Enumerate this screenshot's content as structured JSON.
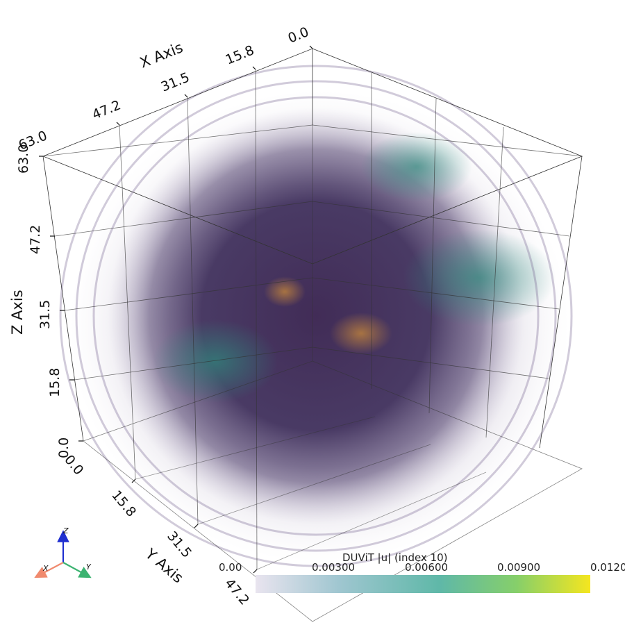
{
  "axes": {
    "x": {
      "title": "X Axis",
      "ticks": [
        "0.0",
        "15.8",
        "31.5",
        "47.2",
        "63.0"
      ]
    },
    "y": {
      "title": "Y Axis",
      "ticks": [
        "0.0",
        "15.8",
        "31.5",
        "47.2"
      ]
    },
    "z": {
      "title": "Z Axis",
      "ticks": [
        "0.0",
        "15.8",
        "31.5",
        "47.2",
        "63.0"
      ]
    }
  },
  "colorbar": {
    "title": "DUViT |u| (index 10)",
    "ticks": [
      "0.00",
      "0.00300",
      "0.00600",
      "0.00900",
      "0.0120"
    ],
    "colormap": [
      "#e9e4ef",
      "#9fc6d0",
      "#5fb8a8",
      "#86cf6a",
      "#f5e61f"
    ]
  },
  "orientation_triad": {
    "x_label": "X",
    "y_label": "Y",
    "z_label": "Z",
    "x_color": "#f08a6e",
    "y_color": "#3cb371",
    "z_color": "#1f2fd0"
  },
  "colors": {
    "volume_dark": "#3a2a55",
    "volume_teal": "#2e8a7c",
    "volume_orange": "#c8883a"
  }
}
